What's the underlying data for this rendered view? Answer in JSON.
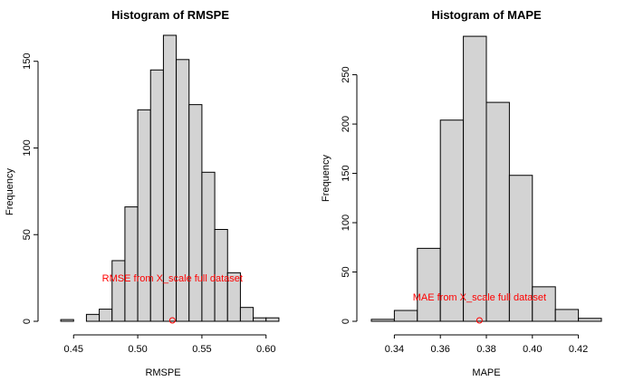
{
  "chart_data": [
    {
      "type": "bar",
      "title": "Histogram of RMSPE",
      "xlabel": "RMSPE",
      "ylabel": "Frequency",
      "xlim": [
        0.435,
        0.615
      ],
      "ylim": [
        0,
        165
      ],
      "xticks": [
        0.45,
        0.5,
        0.55,
        0.6
      ],
      "xtick_labels": [
        "0.45",
        "0.50",
        "0.55",
        "0.60"
      ],
      "yticks": [
        0,
        50,
        100,
        150
      ],
      "ytick_labels": [
        "0",
        "50",
        "100",
        "150"
      ],
      "bin_edges": [
        0.44,
        0.45,
        0.46,
        0.47,
        0.48,
        0.49,
        0.5,
        0.51,
        0.52,
        0.53,
        0.54,
        0.55,
        0.56,
        0.57,
        0.58,
        0.59,
        0.6,
        0.61
      ],
      "values": [
        1,
        0,
        4,
        7,
        35,
        66,
        122,
        145,
        165,
        151,
        125,
        86,
        53,
        28,
        8,
        2,
        2
      ],
      "bar_fill": "#d3d3d3",
      "bar_stroke": "#000000",
      "annotation": {
        "text": "RMSE from X_scale full dataset",
        "x": 0.527,
        "text_y": 25,
        "point_y": 0,
        "color": "#ff0000"
      },
      "grid": false
    },
    {
      "type": "bar",
      "title": "Histogram of MAPE",
      "xlabel": "MAPE",
      "ylabel": "Frequency",
      "xlim": [
        0.33,
        0.43
      ],
      "ylim": [
        0,
        290
      ],
      "xticks": [
        0.34,
        0.36,
        0.38,
        0.4,
        0.42
      ],
      "xtick_labels": [
        "0.34",
        "0.36",
        "0.38",
        "0.40",
        "0.42"
      ],
      "yticks": [
        0,
        50,
        100,
        150,
        200,
        250
      ],
      "ytick_labels": [
        "0",
        "50",
        "100",
        "150",
        "200",
        "250"
      ],
      "bin_edges": [
        0.33,
        0.34,
        0.35,
        0.36,
        0.37,
        0.38,
        0.39,
        0.4,
        0.41,
        0.42,
        0.43
      ],
      "values": [
        2,
        11,
        74,
        204,
        289,
        222,
        148,
        35,
        12,
        3
      ],
      "bar_fill": "#d3d3d3",
      "bar_stroke": "#000000",
      "annotation": {
        "text": "MAE from X_scale full dataset",
        "x": 0.377,
        "text_y": 25,
        "point_y": 0,
        "color": "#ff0000"
      },
      "grid": false
    }
  ]
}
